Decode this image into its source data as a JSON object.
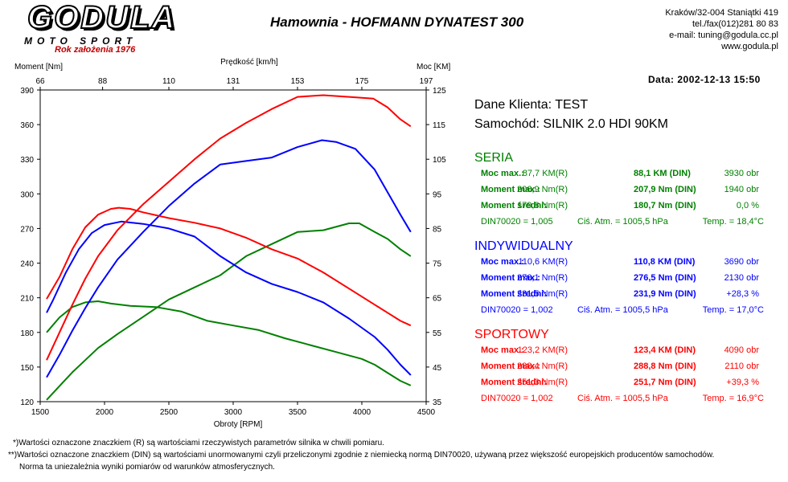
{
  "header": {
    "logo": "GODULA",
    "logo_sub": "MOTO SPORT",
    "founded": "Rok założenia 1976",
    "title": "Hamownia - HOFMANN DYNATEST 300",
    "address": "Kraków/32-004 Staniątki 419",
    "phone": "tel./fax(012)281 80 83",
    "email": "e-mail: tuning@godula.cc.pl",
    "www": "www.godula.pl",
    "date": "Data: 2002-12-13  15:50"
  },
  "client": {
    "line1": "Dane Klienta: TEST",
    "line2": "Samochód: SILNIK 2.0 HDI 90KM"
  },
  "results": [
    {
      "title": "SERIA",
      "color": "#008000",
      "rows": [
        {
          "label": "Moc max.:",
          "r": "87,7 KM(R)",
          "din": "88,1 KM (DIN)",
          "extra": "3930 obr"
        },
        {
          "label": "Moment max.:",
          "r": "206,9 Nm(R)",
          "din": "207,9 Nm (DIN)",
          "extra": "1940 obr"
        },
        {
          "label": "Moment średni:",
          "r": "179,8 Nm(R)",
          "din": "180,7 Nm (DIN)",
          "extra": "0,0 %"
        }
      ],
      "din70020": "DIN70020 = 1,005",
      "atm": "Ciś. Atm. = 1005,5 hPa",
      "temp": "Temp. = 18,4°C"
    },
    {
      "title": "INDYWIDUALNY",
      "color": "#0000ff",
      "rows": [
        {
          "label": "Moc max.:",
          "r": "110,6 KM(R)",
          "din": "110,8 KM (DIN)",
          "extra": "3690 obr"
        },
        {
          "label": "Moment max.:",
          "r": "276,1 Nm(R)",
          "din": "276,5 Nm (DIN)",
          "extra": "2130 obr"
        },
        {
          "label": "Moment średni:",
          "r": "231,5 Nm(R)",
          "din": "231,9 Nm (DIN)",
          "extra": "+28,3 %"
        }
      ],
      "din70020": "DIN70020 = 1,002",
      "atm": "Ciś. Atm. = 1005,5 hPa",
      "temp": "Temp. = 17,0°C"
    },
    {
      "title": "SPORTOWY",
      "color": "#ff0000",
      "rows": [
        {
          "label": "Moc max.:",
          "r": "123,2 KM(R)",
          "din": "123,4 KM (DIN)",
          "extra": "4090 obr"
        },
        {
          "label": "Moment max.:",
          "r": "288,4 Nm(R)",
          "din": "288,8 Nm (DIN)",
          "extra": "2110 obr"
        },
        {
          "label": "Moment średni:",
          "r": "251,3 Nm(R)",
          "din": "251,7 Nm (DIN)",
          "extra": "+39,3 %"
        }
      ],
      "din70020": "DIN70020 = 1,002",
      "atm": "Ciś. Atm. = 1005,5 hPa",
      "temp": "Temp. = 16,9°C"
    }
  ],
  "footnotes": {
    "line1": "*)Wartości oznaczone znaczkiem (R) są wartościami rzeczywistych parametrów silnika w chwili pomiaru.",
    "line2": "**)Wartości oznaczone znaczkiem (DIN) są wartościami unormowanymi czyli przeliczonymi zgodnie z niemiecką normą DIN70020, używaną przez większość europejskich producentów samochodów.",
    "line3": "Norma ta uniezależnia wyniki pomiarów od warunków atmosferycznych."
  },
  "chart_data": {
    "type": "line",
    "xlabel": "Obroty [RPM]",
    "ylabel_left": "Moment [Nm]",
    "ylabel_right": "Moc [KM]",
    "top_axis_label": "Prędkość [km/h]",
    "xlim": [
      1500,
      4500
    ],
    "ylim_left": [
      120,
      390
    ],
    "ylim_right": [
      35,
      125
    ],
    "x_ticks": [
      1500,
      2000,
      2500,
      3000,
      3500,
      4000,
      4500
    ],
    "y_left_ticks": [
      120,
      150,
      180,
      210,
      240,
      270,
      300,
      330,
      360,
      390
    ],
    "y_right_ticks": [
      35,
      45,
      55,
      65,
      75,
      85,
      95,
      105,
      115,
      125
    ],
    "top_ticks": [
      {
        "rpm": 1500,
        "label": "66"
      },
      {
        "rpm": 1985,
        "label": "88"
      },
      {
        "rpm": 2500,
        "label": "110"
      },
      {
        "rpm": 3000,
        "label": "131"
      },
      {
        "rpm": 3500,
        "label": "153"
      },
      {
        "rpm": 4000,
        "label": "175"
      },
      {
        "rpm": 4500,
        "label": "197"
      }
    ],
    "grid": false,
    "series": [
      {
        "name": "SERIA",
        "kind": "torque",
        "axis": "left",
        "color": "#008000",
        "x": [
          1550,
          1650,
          1750,
          1850,
          1950,
          2050,
          2200,
          2400,
          2600,
          2800,
          3000,
          3200,
          3400,
          3600,
          3800,
          4000,
          4100,
          4200,
          4300,
          4380
        ],
        "y": [
          180,
          193,
          202,
          206,
          207,
          205,
          203,
          202,
          198,
          190,
          186,
          182,
          175,
          169,
          163,
          157,
          152,
          145,
          138,
          134
        ]
      },
      {
        "name": "SERIA",
        "kind": "power",
        "axis": "right",
        "color": "#008000",
        "x": [
          1550,
          1650,
          1750,
          1850,
          1950,
          2100,
          2300,
          2500,
          2700,
          2900,
          3100,
          3300,
          3500,
          3700,
          3900,
          3980,
          4100,
          4200,
          4300,
          4380
        ],
        "y": [
          35.5,
          39.5,
          43.5,
          47,
          50.5,
          54.5,
          59.5,
          64.5,
          68,
          71.5,
          77,
          80.5,
          84,
          84.5,
          86.5,
          86.5,
          84,
          82,
          79,
          77
        ]
      },
      {
        "name": "INDYWIDUALNY",
        "kind": "torque",
        "axis": "left",
        "color": "#0000ff",
        "x": [
          1550,
          1600,
          1700,
          1800,
          1900,
          2000,
          2130,
          2300,
          2500,
          2700,
          2900,
          3100,
          3300,
          3500,
          3700,
          3900,
          4100,
          4200,
          4300,
          4380
        ],
        "y": [
          197,
          208,
          232,
          252,
          266,
          273,
          276,
          274,
          270,
          263,
          246,
          232,
          222,
          215,
          206,
          192,
          176,
          165,
          152,
          143
        ]
      },
      {
        "name": "INDYWIDUALNY",
        "kind": "power",
        "axis": "right",
        "color": "#0000ff",
        "x": [
          1550,
          1650,
          1750,
          1850,
          1950,
          2100,
          2300,
          2500,
          2700,
          2900,
          3100,
          3300,
          3500,
          3690,
          3800,
          3950,
          4100,
          4200,
          4300,
          4380
        ],
        "y": [
          42,
          48.5,
          55.5,
          62,
          68,
          76,
          84,
          91.5,
          98,
          103.5,
          104.5,
          105.5,
          108.5,
          110.5,
          110,
          108,
          102,
          95.5,
          89,
          84
        ]
      },
      {
        "name": "SPORTOWY",
        "kind": "torque",
        "axis": "left",
        "color": "#ff0000",
        "x": [
          1550,
          1650,
          1750,
          1850,
          1950,
          2050,
          2110,
          2200,
          2300,
          2500,
          2700,
          2900,
          3100,
          3300,
          3500,
          3700,
          3900,
          4100,
          4200,
          4300,
          4380
        ],
        "y": [
          209,
          228,
          252,
          271,
          282,
          287,
          288,
          287,
          284,
          279,
          275,
          270,
          262,
          252,
          244,
          232,
          218,
          204,
          197,
          190,
          186
        ]
      },
      {
        "name": "SPORTOWY",
        "kind": "power",
        "axis": "right",
        "color": "#ff0000",
        "x": [
          1550,
          1650,
          1750,
          1850,
          1950,
          2100,
          2300,
          2500,
          2700,
          2900,
          3100,
          3300,
          3500,
          3700,
          3900,
          4090,
          4200,
          4300,
          4380
        ],
        "y": [
          47,
          55,
          63,
          70.5,
          77,
          84.5,
          92,
          98.5,
          105,
          111,
          115.5,
          119.5,
          123,
          123.5,
          123,
          122.5,
          120,
          116.5,
          114.5
        ]
      }
    ]
  }
}
